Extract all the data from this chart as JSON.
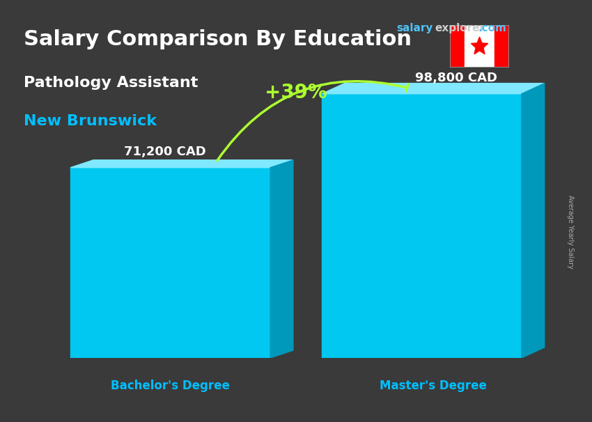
{
  "title_main": "Salary Comparison By Education",
  "title_salary": "salary",
  "title_explorer": "explorer",
  "title_com": ".com",
  "subtitle_job": "Pathology Assistant",
  "subtitle_location": "New Brunswick",
  "categories": [
    "Bachelor's Degree",
    "Master's Degree"
  ],
  "values": [
    71200,
    98800
  ],
  "value_labels": [
    "71,200 CAD",
    "98,800 CAD"
  ],
  "pct_change": "+39%",
  "bar_color_main": "#00BFFF",
  "bar_color_light": "#87DEFF",
  "bar_color_side": "#0099CC",
  "background_color": "#3a3a3a",
  "title_color": "#ffffff",
  "subtitle_job_color": "#ffffff",
  "subtitle_loc_color": "#00BFFF",
  "label_color": "#ffffff",
  "category_color": "#00BFFF",
  "pct_color": "#ADFF2F",
  "salary_color": "#4FC3F7",
  "explorer_color": "#cccccc",
  "side_label": "Average Yearly Salary",
  "bar_width": 0.35,
  "ylim": [
    0,
    130000
  ],
  "fig_width": 8.5,
  "fig_height": 6.06
}
